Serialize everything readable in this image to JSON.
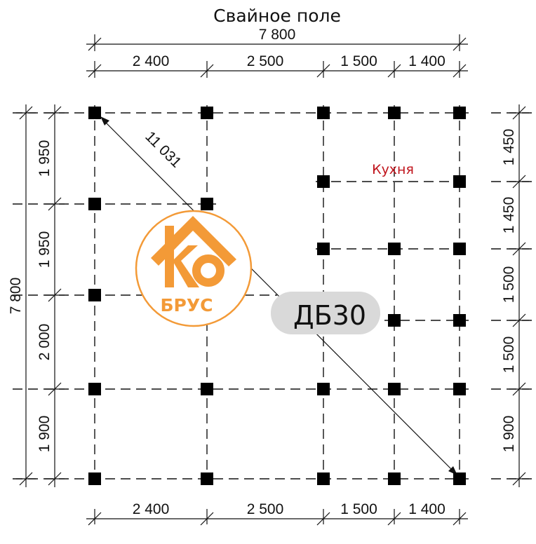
{
  "title": "Свайное поле",
  "room_label": "Кухня",
  "diagonal_label": "11 031",
  "badge_label": "ДБ30",
  "logo": {
    "text_top": "КО",
    "text_bottom": "БРУС",
    "color": "#f39a37"
  },
  "top_total": "7 800",
  "top_dims": [
    "2 400",
    "2 500",
    "1 500",
    "1 400"
  ],
  "bottom_dims": [
    "2 400",
    "2 500",
    "1 500",
    "1 400"
  ],
  "left_total": "7 800",
  "left_dims": [
    "1 950",
    "1 950",
    "2 000",
    "1 900"
  ],
  "right_dims": [
    "1 450",
    "1 450",
    "1 500",
    "1 500",
    "1 900"
  ],
  "badge_color": "#d9d9d9"
}
